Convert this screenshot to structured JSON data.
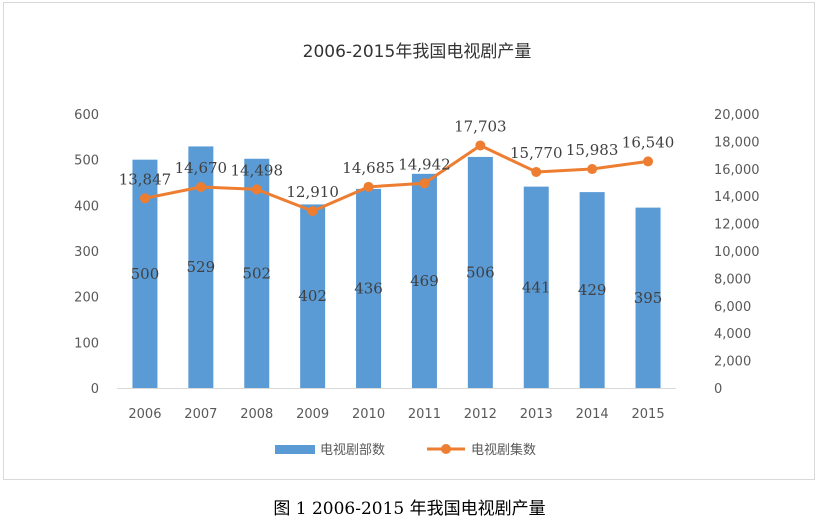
{
  "chart_data": {
    "type": "bar",
    "title": "2006-2015年我国电视剧产量",
    "categories": [
      "2006",
      "2007",
      "2008",
      "2009",
      "2010",
      "2011",
      "2012",
      "2013",
      "2014",
      "2015"
    ],
    "series": [
      {
        "name": "电视剧部数",
        "type": "bar",
        "axis": "left",
        "values": [
          500,
          529,
          502,
          402,
          436,
          469,
          506,
          441,
          429,
          395
        ],
        "labels": [
          "500",
          "529",
          "502",
          "402",
          "436",
          "469",
          "506",
          "441",
          "429",
          "395"
        ]
      },
      {
        "name": "电视剧集数",
        "type": "line",
        "axis": "right",
        "values": [
          13847,
          14670,
          14498,
          12910,
          14685,
          14942,
          17703,
          15770,
          15983,
          16540
        ],
        "labels": [
          "13,847",
          "14,670",
          "14,498",
          "12,910",
          "14,685",
          "14,942",
          "17,703",
          "15,770",
          "15,983",
          "16,540"
        ]
      }
    ],
    "y_left": {
      "min": 0,
      "max": 600,
      "ticks": [
        "0",
        "100",
        "200",
        "300",
        "400",
        "500",
        "600"
      ]
    },
    "y_right": {
      "min": 0,
      "max": 20000,
      "ticks": [
        "0",
        "2,000",
        "4,000",
        "6,000",
        "8,000",
        "10,000",
        "12,000",
        "14,000",
        "16,000",
        "18,000",
        "20,000"
      ]
    },
    "grid": false,
    "legend_position": "bottom",
    "colors": {
      "bar": "#5b9bd5",
      "line": "#ed7d31",
      "text": "#595959"
    }
  },
  "caption": "图 1  2006-2015 年我国电视剧产量"
}
